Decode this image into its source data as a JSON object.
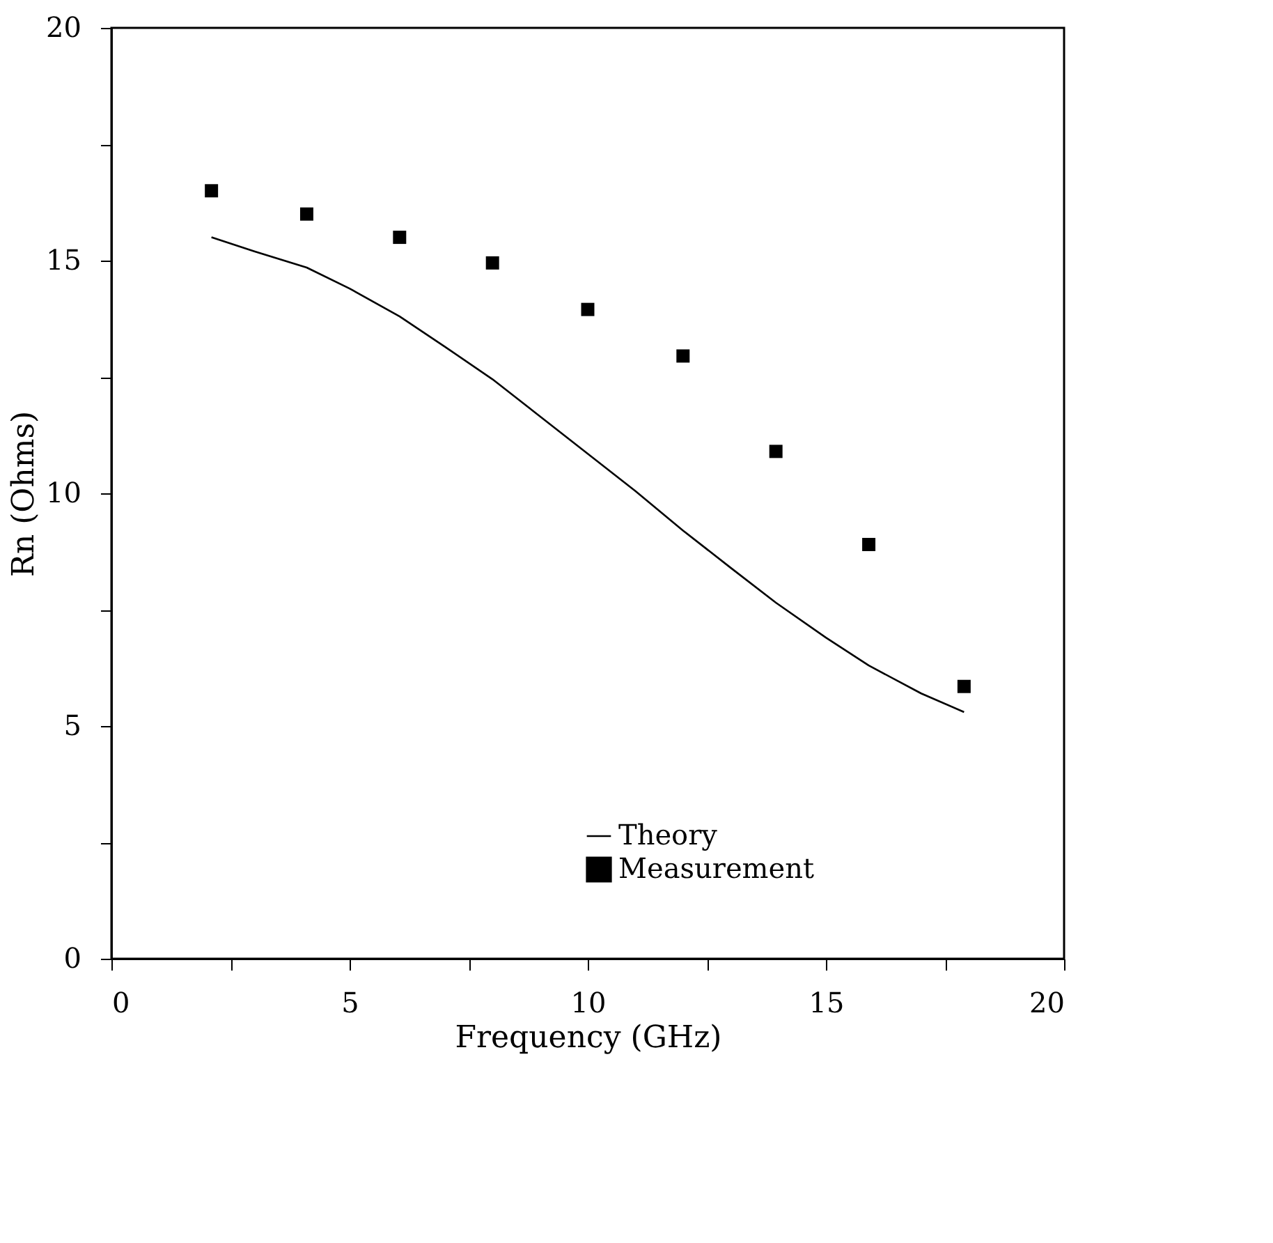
{
  "chart_data": {
    "type": "line",
    "xlabel": "Frequency (GHz)",
    "ylabel": "Rn (Ohms)",
    "xlim": [
      0,
      20
    ],
    "ylim": [
      0,
      20
    ],
    "xticks": [
      0,
      {
        "value": 2.5,
        "label": null
      },
      5,
      {
        "value": 7.5,
        "label": null
      },
      10,
      {
        "value": 12.5,
        "label": null
      },
      15,
      {
        "value": 17.5,
        "label": null
      },
      20
    ],
    "yticks": [
      0,
      {
        "value": 2.5,
        "label": null
      },
      5,
      {
        "value": 7.5,
        "label": null
      },
      10,
      {
        "value": 12.5,
        "label": null
      },
      15,
      {
        "value": 17.5,
        "label": null
      },
      20
    ],
    "grid": false,
    "legend": "bottom right",
    "series": [
      {
        "name": "Theory",
        "color": "#000000",
        "marker": "none",
        "line_style": "solid",
        "x": [
          2.1,
          3,
          4.1,
          5,
          6.05,
          7,
          8,
          9,
          10,
          11,
          12,
          13,
          13.95,
          15,
          15.9,
          17,
          17.9
        ],
        "values": [
          15.5,
          15.2,
          14.85,
          14.4,
          13.8,
          13.15,
          12.45,
          11.65,
          10.85,
          10.05,
          9.2,
          8.4,
          7.65,
          6.9,
          6.3,
          5.7,
          5.3
        ]
      },
      {
        "name": "Measurement",
        "type": "scatter",
        "color": "#000000",
        "marker": "square",
        "x": [
          2.1,
          4.1,
          6.05,
          8.0,
          10.0,
          12.0,
          13.95,
          15.9,
          17.9
        ],
        "values": [
          16.5,
          16.0,
          15.5,
          14.95,
          13.95,
          12.95,
          10.9,
          8.9,
          5.85
        ]
      }
    ]
  }
}
